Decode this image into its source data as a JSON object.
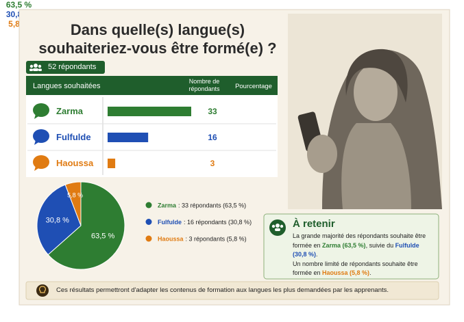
{
  "header": {
    "title_lines": [
      "Dans quelle(s) langue(s)",
      "souhaiteriez-vous être formé(e) ?"
    ],
    "respondents": "52 répondants"
  },
  "chart_data": [
    {
      "type": "bar",
      "orientation": "horizontal",
      "columns": [
        "Langues souhaitées",
        "Nombre de répondants",
        "Pourcentage"
      ],
      "categories": [
        "Zarma",
        "Fulfulde",
        "Haoussa"
      ],
      "values": [
        33,
        16,
        3
      ],
      "colors": [
        "#2e7d32",
        "#1f4fb4",
        "#e07b12"
      ]
    },
    {
      "type": "pie",
      "categories": [
        "Zarma",
        "Fulfulde",
        "Haoussa"
      ],
      "values": [
        63.5,
        30.8,
        5.8
      ],
      "value_labels": [
        "63,5 %",
        "30,8 %",
        "5,8 %"
      ],
      "colors": [
        "#2e7d32",
        "#1f4fb4",
        "#e07b12"
      ],
      "legend_texts": [
        ": 33 répondants (63,5 %)",
        ": 16 répondants (30,8 %)",
        ": 3 répondants (5,8 %)"
      ]
    }
  ],
  "callout": {
    "title": "À retenir",
    "paragraphs": [
      [
        {
          "text": "La grande majorité des répondants souhaite être formée en "
        },
        {
          "text": "Zarma (63,5 %)",
          "color": "#2e7d32"
        },
        {
          "text": ", suivie du "
        },
        {
          "text": "Fulfulde (30,8 %)",
          "color": "#1f4fb4"
        },
        {
          "text": "."
        }
      ],
      [
        {
          "text": "Un nombre limité de répondants souhaite être formée en "
        },
        {
          "text": "Haoussa (5,8 %)",
          "color": "#e07b12"
        },
        {
          "text": "."
        }
      ]
    ]
  },
  "footer": {
    "text": "Ces résultats permettront d'adapter les contenus de formation aux langues les plus demandées par les apprenants."
  }
}
